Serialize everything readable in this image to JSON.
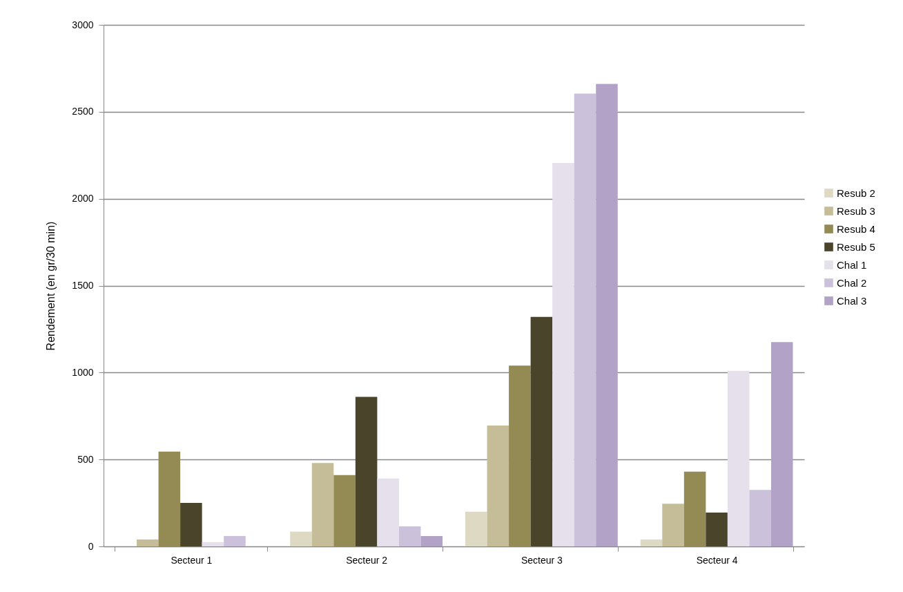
{
  "chart_data": {
    "type": "bar",
    "ylabel": "Rendement (en gr/30 min)",
    "categories": [
      "Secteur 1",
      "Secteur 2",
      "Secteur 3",
      "Secteur 4"
    ],
    "series": [
      {
        "name": "Resub 2",
        "color": "#ddd9c3",
        "values": [
          0,
          85,
          200,
          40
        ]
      },
      {
        "name": "Resub 3",
        "color": "#c4bd97",
        "values": [
          40,
          480,
          695,
          245
        ]
      },
      {
        "name": "Resub 4",
        "color": "#948a54",
        "values": [
          545,
          410,
          1040,
          430
        ]
      },
      {
        "name": "Resub 5",
        "color": "#4a452a",
        "values": [
          250,
          860,
          1320,
          195
        ]
      },
      {
        "name": "Chal 1",
        "color": "#e5e0ec",
        "values": [
          25,
          390,
          2205,
          1010
        ]
      },
      {
        "name": "Chal 2",
        "color": "#ccc1da",
        "values": [
          60,
          115,
          2605,
          325
        ]
      },
      {
        "name": "Chal 3",
        "color": "#b2a2c7",
        "values": [
          0,
          60,
          2660,
          1175
        ]
      }
    ],
    "ylim": [
      0,
      3000
    ],
    "yticks": [
      0,
      500,
      1000,
      1500,
      2000,
      2500,
      3000
    ],
    "grid": "y",
    "legend": "right"
  }
}
